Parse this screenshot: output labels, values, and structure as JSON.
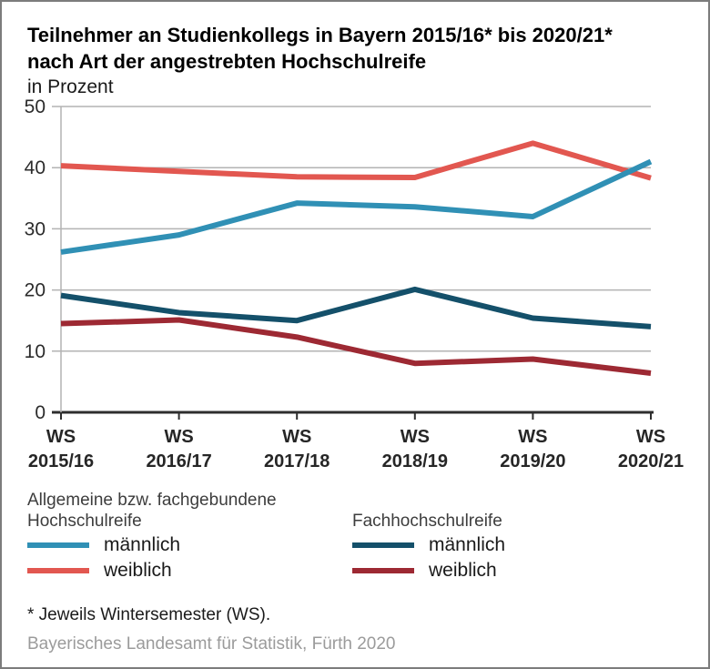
{
  "header": {
    "title_line1": "Teilnehmer an Studienkollegs in Bayern 2015/16* bis 2020/21*",
    "title_line2": "nach Art der angestrebten Hochschulreife",
    "subtitle": "in Prozent"
  },
  "chart_data": {
    "type": "line",
    "categories": [
      [
        "WS",
        "2015/16"
      ],
      [
        "WS",
        "2016/17"
      ],
      [
        "WS",
        "2017/18"
      ],
      [
        "WS",
        "2018/19"
      ],
      [
        "WS",
        "2019/20"
      ],
      [
        "WS",
        "2020/21"
      ]
    ],
    "series": [
      {
        "name": "Allgemeine bzw. fachgebundene Hochschulreife - männlich",
        "color": "#3090b5",
        "values": [
          26.2,
          29.0,
          34.2,
          33.6,
          32.0,
          41.0
        ]
      },
      {
        "name": "Allgemeine bzw. fachgebundene Hochschulreife - weiblich",
        "color": "#e25750",
        "values": [
          40.3,
          39.4,
          38.5,
          38.4,
          44.0,
          38.3
        ]
      },
      {
        "name": "Fachhochschulreife - männlich",
        "color": "#14506a",
        "values": [
          19.1,
          16.3,
          15.0,
          20.1,
          15.4,
          14.0
        ]
      },
      {
        "name": "Fachhochschulreife - weiblich",
        "color": "#9d2933",
        "values": [
          14.5,
          15.1,
          12.3,
          8.0,
          8.7,
          6.4
        ]
      }
    ],
    "ylabel": "in Prozent",
    "xlabel": "",
    "ylim": [
      0,
      50
    ],
    "yticks": [
      0,
      10,
      20,
      30,
      40,
      50
    ],
    "grid": true,
    "legend_position": "bottom",
    "colors": {
      "gridline": "#b3b3b3",
      "axis": "#2e2e2e",
      "tick_label": "#2b2b2b"
    }
  },
  "legend": {
    "groups": [
      {
        "heading_line1": "Allgemeine bzw. fachgebundene",
        "heading_line2": "Hochschulreife",
        "items": [
          {
            "label": "männlich",
            "color": "#3090b5"
          },
          {
            "label": "weiblich",
            "color": "#e25750"
          }
        ]
      },
      {
        "heading_line1": "Fachhochschulreife",
        "heading_line2": "",
        "items": [
          {
            "label": "männlich",
            "color": "#14506a"
          },
          {
            "label": "weiblich",
            "color": "#9d2933"
          }
        ]
      }
    ]
  },
  "footer": {
    "footnote": "* Jeweils Wintersemester (WS).",
    "source": "Bayerisches Landesamt für Statistik, Fürth 2020"
  }
}
